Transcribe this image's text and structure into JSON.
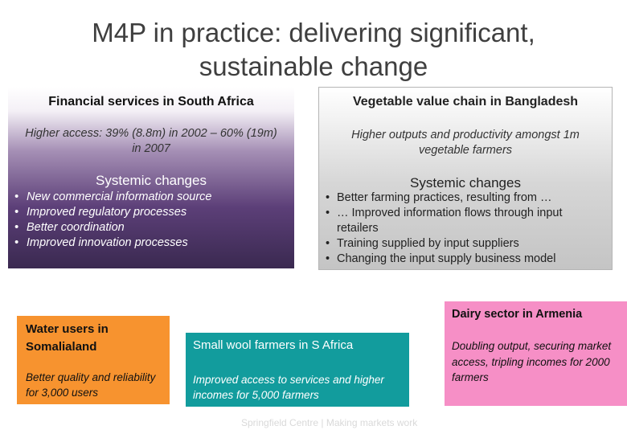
{
  "title": {
    "line1": "M4P in practice: delivering significant,",
    "line2": "sustainable change"
  },
  "south_africa": {
    "heading": "Financial services in South Africa",
    "subtitle": "Higher access: 39% (8.8m) in 2002 – 60% (19m) in 2007",
    "systemic_heading": "Systemic changes",
    "bullets": [
      "New commercial information source",
      "Improved regulatory processes",
      "Better coordination",
      "Improved innovation processes"
    ]
  },
  "bangladesh": {
    "heading": "Vegetable value chain in Bangladesh",
    "subtitle": "Higher outputs and productivity amongst 1m vegetable farmers",
    "systemic_heading": "Systemic changes",
    "bullets": [
      "Better farming practices, resulting from …",
      "… Improved information flows through input retailers",
      "Training supplied by input suppliers",
      "Changing the input supply business model"
    ]
  },
  "water": {
    "title": "Water users in Somalialand",
    "subtitle": "Better quality and reliability for 3,000 users"
  },
  "wool": {
    "title": "Small wool farmers in S Africa",
    "subtitle": "Improved access to services and higher incomes for 5,000 farmers"
  },
  "dairy": {
    "title": "Dairy  sector in Armenia",
    "subtitle": "Doubling output, securing market access, tripling incomes for 2000 farmers"
  },
  "footer": "Springfield Centre | Making markets work",
  "colors": {
    "water_bg": "#f7932f",
    "wool_bg": "#129c9d",
    "dairy_bg": "#f68fc6",
    "sa_bg": "#3a2950",
    "bd_bg": "#c4c4c4"
  }
}
